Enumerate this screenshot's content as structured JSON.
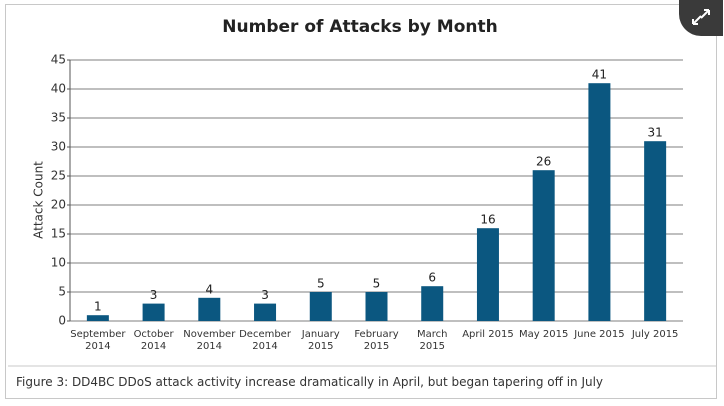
{
  "chart_data": {
    "type": "bar",
    "title": "Number of Attacks by Month",
    "y_label": "Attack Count",
    "categories": [
      "September\n2014",
      "October\n2014",
      "November\n2014",
      "December\n2014",
      "January\n2015",
      "February\n2015",
      "March\n2015",
      "April 2015",
      "May 2015",
      "June 2015",
      "July 2015"
    ],
    "values": [
      1,
      3,
      4,
      3,
      5,
      5,
      6,
      16,
      26,
      41,
      31
    ],
    "color": "#0b5780",
    "ylim": [
      0,
      45
    ],
    "yticks": [
      0,
      5,
      10,
      15,
      20,
      25,
      30,
      35,
      40,
      45
    ],
    "grid": true,
    "caption": "Figure 3: DD4BC DDoS attack activity increase dramatically in April, but began tapering off in July"
  }
}
